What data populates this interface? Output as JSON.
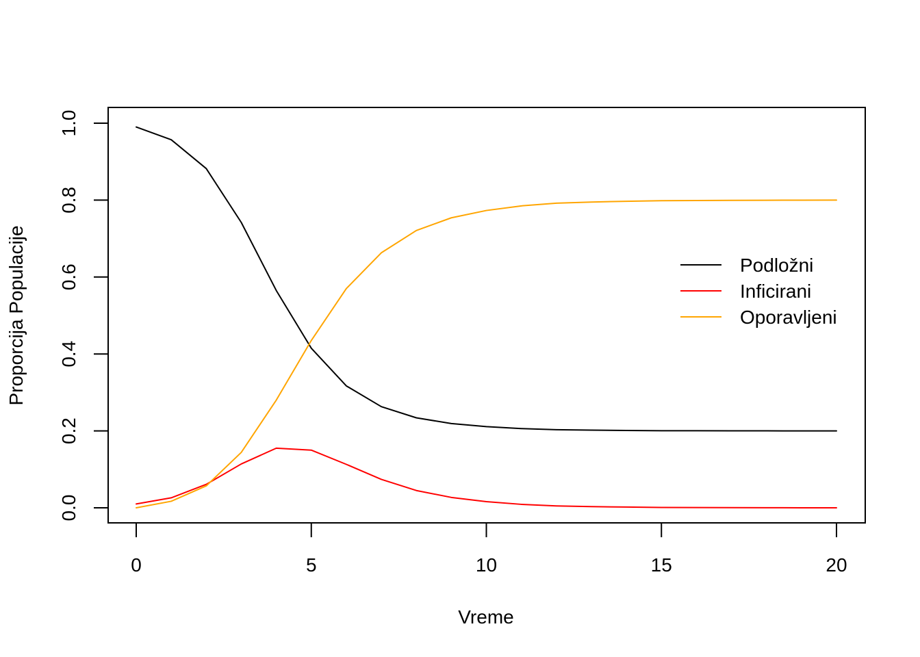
{
  "chart_data": {
    "type": "line",
    "title": "",
    "xlabel": "Vreme",
    "ylabel": "Proporcija Populacije",
    "xlim": [
      0,
      20
    ],
    "ylim": [
      0,
      1
    ],
    "x_ticks": [
      0,
      5,
      10,
      15,
      20
    ],
    "x_tick_labels": [
      "0",
      "5",
      "10",
      "15",
      "20"
    ],
    "y_ticks": [
      0,
      0.2,
      0.4,
      0.6,
      0.8,
      1.0
    ],
    "y_tick_labels": [
      "0.0",
      "0.2",
      "0.4",
      "0.6",
      "0.8",
      "1.0"
    ],
    "grid": false,
    "legend_position": "right",
    "x": [
      0,
      1,
      2,
      3,
      4,
      5,
      6,
      7,
      8,
      9,
      10,
      11,
      12,
      13,
      14,
      15,
      16,
      17,
      18,
      19,
      20
    ],
    "series": [
      {
        "name": "Podložni",
        "color": "#000000",
        "values": [
          0.99,
          0.957,
          0.882,
          0.742,
          0.565,
          0.415,
          0.317,
          0.263,
          0.234,
          0.219,
          0.211,
          0.206,
          0.203,
          0.202,
          0.201,
          0.2005,
          0.2003,
          0.2002,
          0.2001,
          0.2,
          0.2
        ]
      },
      {
        "name": "Inficirani",
        "color": "#ff0000",
        "values": [
          0.01,
          0.026,
          0.061,
          0.114,
          0.155,
          0.15,
          0.113,
          0.074,
          0.045,
          0.027,
          0.016,
          0.009,
          0.005,
          0.003,
          0.002,
          0.001,
          0.0007,
          0.0004,
          0.0002,
          0.0001,
          0.0
        ]
      },
      {
        "name": "Oporavljeni",
        "color": "#ffa500",
        "values": [
          0.0,
          0.017,
          0.057,
          0.144,
          0.28,
          0.435,
          0.57,
          0.663,
          0.721,
          0.754,
          0.773,
          0.785,
          0.792,
          0.795,
          0.797,
          0.7985,
          0.799,
          0.7994,
          0.7997,
          0.7999,
          0.8
        ]
      }
    ]
  }
}
